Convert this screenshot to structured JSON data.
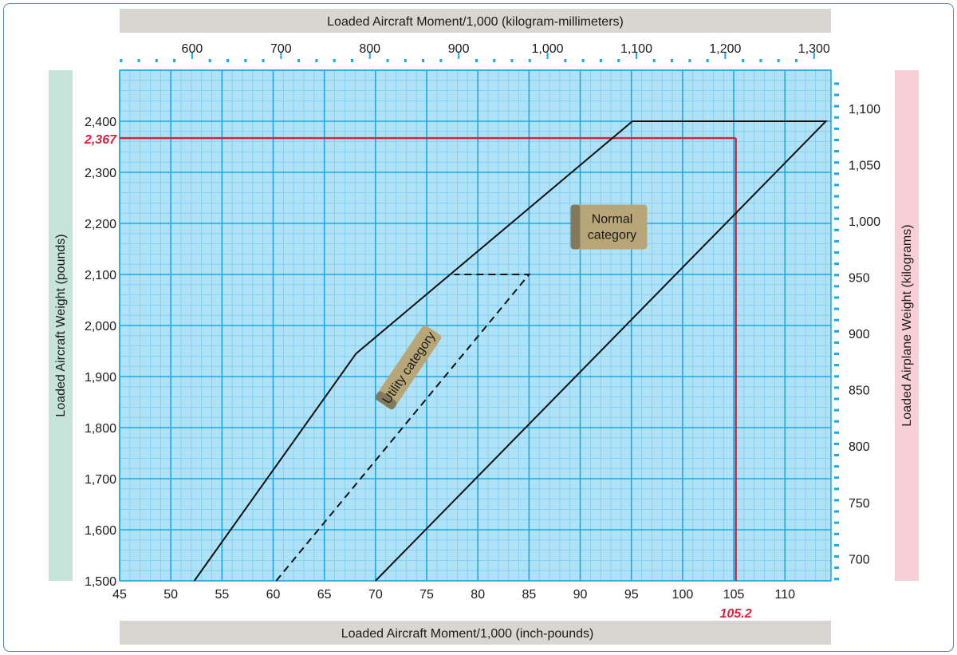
{
  "chart_data": {
    "type": "line",
    "title": "",
    "top_axis_label": "Loaded Aircraft Moment/1,000 (kilogram-millimeters)",
    "bottom_axis_label": "Loaded Aircraft Moment/1,000 (inch-pounds)",
    "left_axis_label": "Loaded  Aircraft Weight (pounds)",
    "right_axis_label": "Loaded Airplane Weight (kilograms)",
    "xlim": [
      45,
      114.5
    ],
    "ylim": [
      1500,
      2500
    ],
    "x_ticks": [
      "45",
      "50",
      "55",
      "60",
      "65",
      "70",
      "75",
      "80",
      "85",
      "90",
      "95",
      "100",
      "105",
      "110"
    ],
    "y_ticks": [
      "1,500",
      "1,600",
      "1,700",
      "1,800",
      "1,900",
      "2,000",
      "2,100",
      "2,200",
      "2,300",
      "2,400"
    ],
    "top_ticks": [
      "600",
      "700",
      "800",
      "900",
      "1,000",
      "1,100",
      "1,200",
      "1,300"
    ],
    "right_ticks": [
      "700",
      "750",
      "800",
      "850",
      "900",
      "950",
      "1,000",
      "1,050",
      "1,100"
    ],
    "series": [
      {
        "style": "solid",
        "x": [
          52.3,
          68.1,
          95.1,
          114.0,
          70.0
        ],
        "y": [
          1500,
          1945,
          2400,
          2400,
          1500
        ]
      },
      {
        "style": "dashed",
        "x": [
          60.3,
          85.0,
          77.7
        ],
        "y": [
          1500,
          2100,
          2100
        ]
      }
    ],
    "highlight": {
      "x": 105.2,
      "y": 2367,
      "x_label": "105.2",
      "y_label": "2,367",
      "color": "#d6243c"
    },
    "annotations": [
      {
        "text": "Utility category",
        "x": 73.2,
        "y": 1918,
        "rotate": -56
      },
      {
        "lines": [
          "Normal",
          "category"
        ],
        "x": 92.8,
        "y": 2193
      }
    ],
    "grid": true
  },
  "colors": {
    "plot_background": "#b0e2f7",
    "major_grid": "#1aa9e6",
    "minor_grid": "#7ccdf0",
    "left_band": "#c6e4da",
    "right_band": "#f7cfd5",
    "axis_band": "#d9d6d2",
    "highlight": "#d6243c",
    "label_box": "#b8a678"
  }
}
